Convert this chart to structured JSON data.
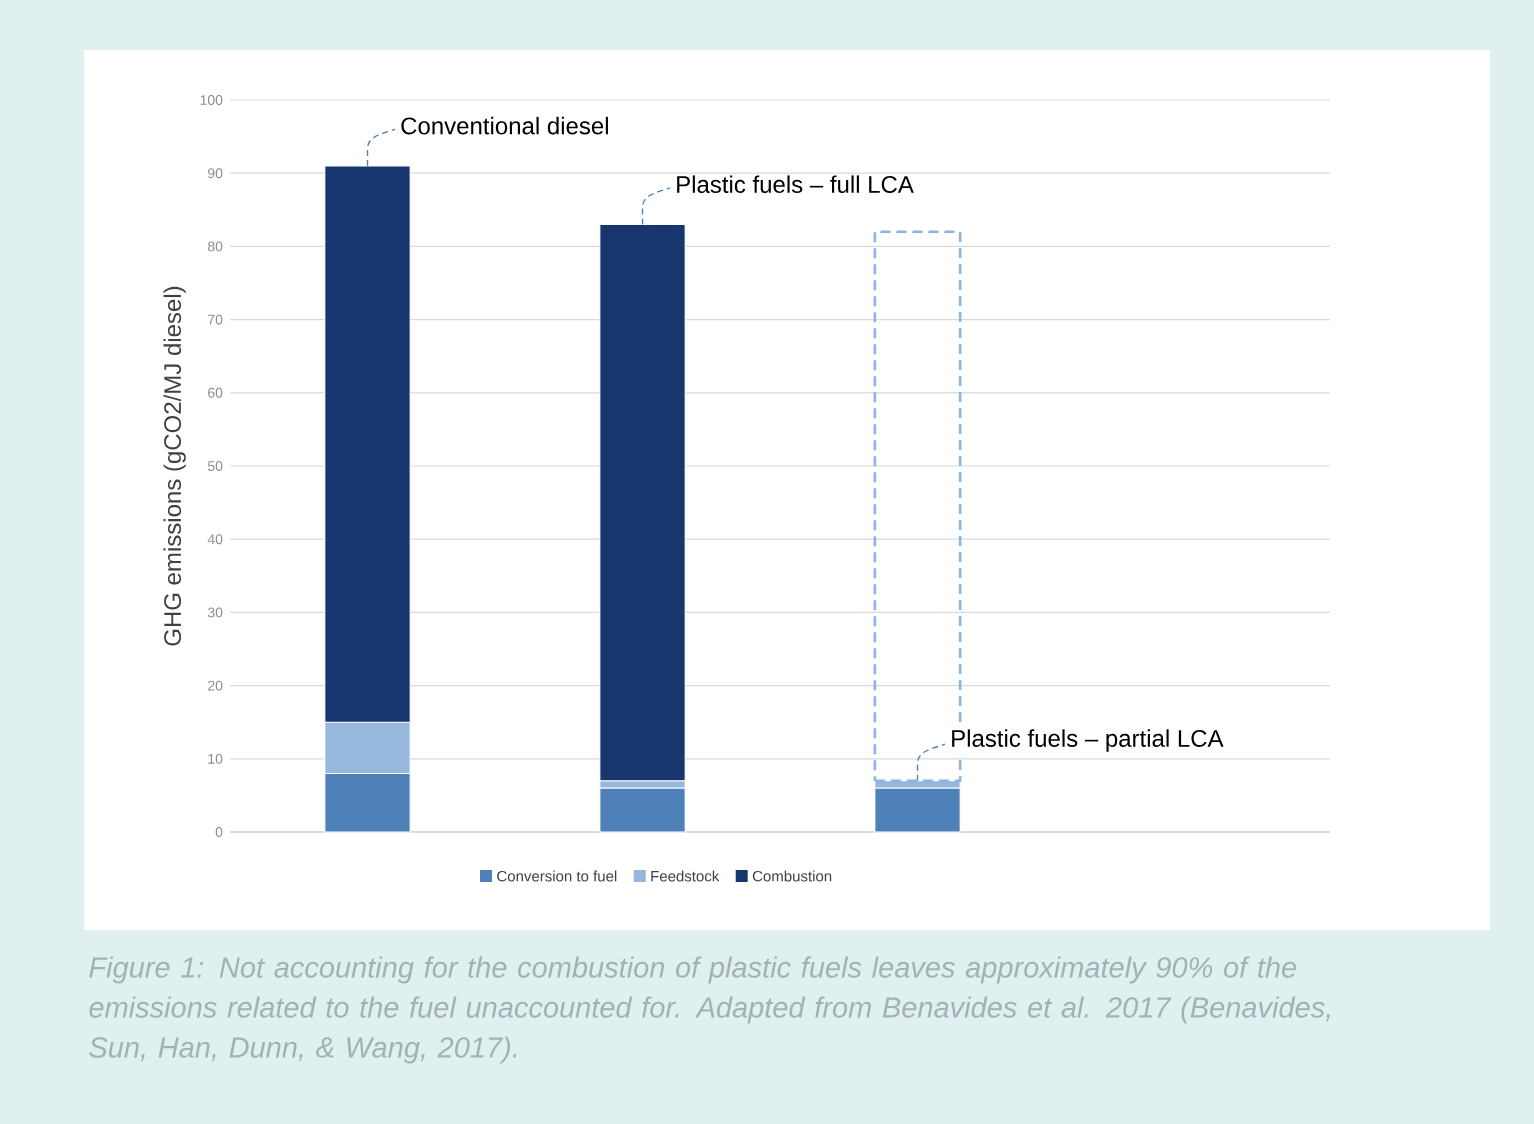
{
  "chart_data": {
    "type": "bar",
    "stacked": true,
    "ylabel": "GHG emissions (gCO2/MJ diesel)",
    "categories": [
      null,
      null,
      null
    ],
    "series": [
      {
        "name": "Conversion to fuel",
        "color": "#4f81b9",
        "values": [
          8,
          6,
          6
        ]
      },
      {
        "name": "Feedstock",
        "color": "#95b8dc",
        "values": [
          7,
          1,
          1
        ]
      },
      {
        "name": "Combustion",
        "color": "#17366e",
        "values": [
          76,
          76,
          null
        ]
      },
      {
        "color": "#8db4e2",
        "line_style": "dashed",
        "values": [
          null,
          null,
          75
        ]
      }
    ],
    "ylim": [
      0,
      100
    ],
    "yticks": [
      0,
      10,
      20,
      30,
      40,
      50,
      60,
      70,
      80,
      90,
      100
    ],
    "grid": "y",
    "legend": "bottom",
    "annotations": [
      "Conventional diesel",
      "Plastic fuels – full LCA",
      "Plastic fuels – partial LCA",
      "Figure 1: Not accounting for the combustion of plastic fuels leaves approximately 90% of the emissions related to the fuel unaccounted for. Adapted from Benavides et al. 2017 (Benavides, Sun, Han, Dunn, & Wang, 2017)."
    ]
  }
}
